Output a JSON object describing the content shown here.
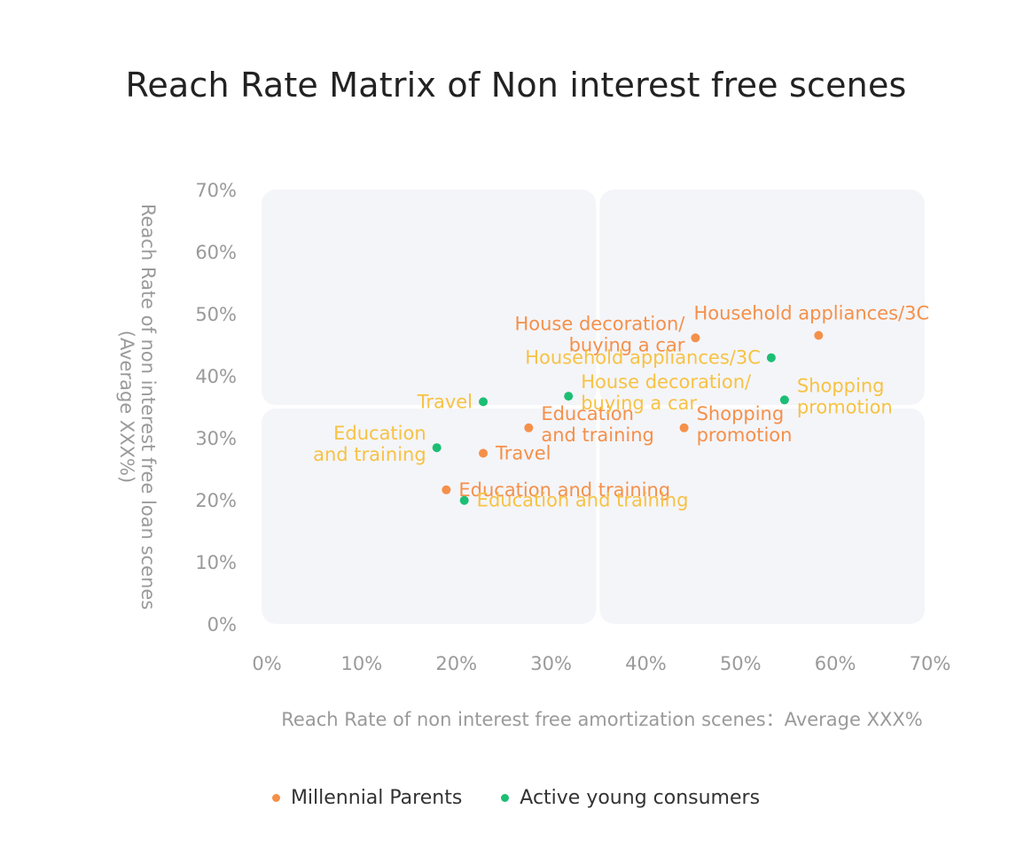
{
  "chart_data": {
    "type": "scatter",
    "title": "Reach Rate Matrix of Non interest free scenes",
    "xlabel": "Reach Rate of non interest free amortization scenes：Average XXX%",
    "ylabel_lines": [
      "Reach Rate of non interest free loan scenes",
      "(Average XXX%)"
    ],
    "xlim": [
      0,
      70
    ],
    "ylim": [
      0,
      70
    ],
    "x_ticks": [
      "0%",
      "10%",
      "20%",
      "30%",
      "40%",
      "50%",
      "60%",
      "70%"
    ],
    "y_ticks": [
      "0%",
      "10%",
      "20%",
      "30%",
      "40%",
      "50%",
      "60%",
      "70%"
    ],
    "quadrant_split": {
      "x": 35.5,
      "y": 35
    },
    "grid": false,
    "legend_position": "bottom",
    "series": [
      {
        "name": "Millennial Parents",
        "color": "#F5904A",
        "label_color": "#F5904A",
        "points": [
          {
            "x": 45.8,
            "y": 46.1,
            "label": [
              "House decoration/",
              "buying a car"
            ],
            "label_side": "left"
          },
          {
            "x": 58.8,
            "y": 46.5,
            "label": [
              "Household appliances/3C"
            ],
            "label_side": "top"
          },
          {
            "x": 44.6,
            "y": 31.6,
            "label": [
              "Shopping",
              "promotion"
            ],
            "label_side": "right"
          },
          {
            "x": 28.2,
            "y": 31.6,
            "label": [
              "Education",
              "and training"
            ],
            "label_side": "right"
          },
          {
            "x": 23.4,
            "y": 27.5,
            "label": [
              "Travel"
            ],
            "label_side": "right"
          },
          {
            "x": 19.5,
            "y": 21.6,
            "label": [
              "Education and training"
            ],
            "label_side": "right"
          }
        ]
      },
      {
        "name": "Active young consumers",
        "color": "#1DBE74",
        "label_color": "#F7C244",
        "points": [
          {
            "x": 53.8,
            "y": 42.9,
            "label": [
              "Household appliances/3C"
            ],
            "label_side": "left"
          },
          {
            "x": 55.2,
            "y": 36.1,
            "label": [
              "Shopping",
              "promotion"
            ],
            "label_side": "right"
          },
          {
            "x": 32.4,
            "y": 36.7,
            "label": [
              "House decoration/",
              "buying a car"
            ],
            "label_side": "right"
          },
          {
            "x": 23.4,
            "y": 35.8,
            "label": [
              "Travel"
            ],
            "label_side": "left"
          },
          {
            "x": 18.5,
            "y": 28.4,
            "label": [
              "Education",
              "and training"
            ],
            "label_side": "left"
          },
          {
            "x": 21.4,
            "y": 19.9,
            "label": [
              "Education and training"
            ],
            "label_side": "right"
          }
        ]
      }
    ]
  },
  "legend": [
    {
      "label": "Millennial Parents",
      "color": "#F5904A"
    },
    {
      "label": "Active young consumers",
      "color": "#1DBE74"
    }
  ]
}
